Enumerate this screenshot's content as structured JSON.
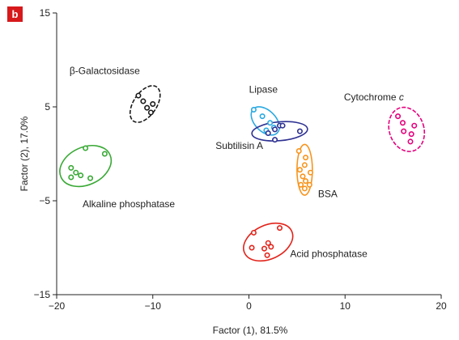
{
  "chart_data": {
    "type": "scatter",
    "panel_label": "b",
    "xlabel": "Factor (1), 81.5%",
    "ylabel": "Factor (2), 17.0%",
    "xlim": [
      -20,
      20
    ],
    "ylim": [
      -15,
      15
    ],
    "xticks": [
      -20,
      -10,
      0,
      10,
      20
    ],
    "yticks": [
      -15,
      -5,
      5,
      15
    ],
    "xtick_labels": [
      "−20",
      "−10",
      "0",
      "10",
      "20"
    ],
    "ytick_labels": [
      "−15",
      "−5",
      "5",
      "15"
    ],
    "grid": false,
    "series": [
      {
        "name": "β-Galactosidase",
        "color": "#1a1a1a",
        "ellipse_style": "dashed",
        "label_text": "β-Galactosidase",
        "label_at": [
          -15.0,
          8.5
        ],
        "points": [
          [
            -11.5,
            6.2
          ],
          [
            -11.0,
            5.6
          ],
          [
            -10.6,
            4.9
          ],
          [
            -10.0,
            5.3
          ],
          [
            -10.2,
            4.4
          ]
        ]
      },
      {
        "name": "Lipase",
        "color": "#29a9e1",
        "ellipse_style": "solid",
        "label_text": "Lipase",
        "label_at": [
          1.5,
          6.5
        ],
        "points": [
          [
            0.5,
            4.7
          ],
          [
            1.4,
            4.0
          ],
          [
            2.2,
            3.3
          ],
          [
            1.8,
            2.5
          ],
          [
            2.6,
            2.8
          ]
        ]
      },
      {
        "name": "Subtilisin A",
        "color": "#2e3192",
        "ellipse_style": "solid",
        "label_text": "Subtilisin A",
        "label_at": [
          -1.0,
          0.5
        ],
        "points": [
          [
            2.0,
            2.2
          ],
          [
            2.7,
            2.6
          ],
          [
            3.2,
            3.0
          ],
          [
            3.5,
            3.0
          ],
          [
            2.7,
            1.5
          ],
          [
            5.3,
            2.4
          ]
        ]
      },
      {
        "name": "Cytochrome c",
        "color": "#e6007e",
        "ellipse_style": "dashed",
        "label_text": "Cytochrome ",
        "label_italic": "c",
        "label_at": [
          13.0,
          5.7
        ],
        "points": [
          [
            15.5,
            4.0
          ],
          [
            16.0,
            3.3
          ],
          [
            17.2,
            3.0
          ],
          [
            16.1,
            2.4
          ],
          [
            16.9,
            2.1
          ],
          [
            16.8,
            1.3
          ]
        ]
      },
      {
        "name": "Alkaline phosphatase",
        "color": "#39a935",
        "ellipse_style": "solid",
        "label_text": "Alkaline phosphatase",
        "label_at": [
          -12.5,
          -5.7
        ],
        "points": [
          [
            -17.0,
            0.6
          ],
          [
            -15.0,
            0.0
          ],
          [
            -18.5,
            -1.5
          ],
          [
            -18.0,
            -2.0
          ],
          [
            -17.5,
            -2.3
          ],
          [
            -18.5,
            -2.5
          ],
          [
            -16.5,
            -2.6
          ]
        ]
      },
      {
        "name": "BSA",
        "color": "#f7941d",
        "ellipse_style": "solid",
        "label_text": "BSA",
        "label_at": [
          8.2,
          -4.6
        ],
        "points": [
          [
            5.2,
            0.3
          ],
          [
            5.9,
            -0.4
          ],
          [
            5.8,
            -1.2
          ],
          [
            5.3,
            -1.7
          ],
          [
            6.4,
            -2.0
          ],
          [
            5.6,
            -2.4
          ],
          [
            5.9,
            -2.9
          ],
          [
            5.4,
            -3.3
          ],
          [
            6.3,
            -3.3
          ],
          [
            5.8,
            -3.7
          ]
        ]
      },
      {
        "name": "Acid phosphatase",
        "color": "#e2231a",
        "ellipse_style": "solid",
        "label_text": "Acid phosphatase",
        "label_at": [
          8.3,
          -11.0
        ],
        "points": [
          [
            0.5,
            -8.4
          ],
          [
            3.2,
            -7.9
          ],
          [
            2.0,
            -9.5
          ],
          [
            2.3,
            -9.9
          ],
          [
            0.3,
            -10.0
          ],
          [
            1.6,
            -10.1
          ],
          [
            1.9,
            -10.8
          ]
        ]
      }
    ],
    "ellipses": [
      {
        "series": "β-Galactosidase",
        "cx": -10.8,
        "cy": 5.3,
        "rx": 1.2,
        "ry": 2.2,
        "angle": 34
      },
      {
        "series": "Lipase",
        "cx": 1.7,
        "cy": 3.5,
        "rx": 1.1,
        "ry": 1.8,
        "angle": -45
      },
      {
        "series": "Subtilisin A",
        "cx": 3.2,
        "cy": 2.4,
        "rx": 2.9,
        "ry": 1.0,
        "angle": -5
      },
      {
        "series": "Cytochrome c",
        "cx": 16.4,
        "cy": 2.6,
        "rx": 1.8,
        "ry": 2.4,
        "angle": -18
      },
      {
        "series": "Alkaline phosphatase",
        "cx": -17.0,
        "cy": -1.3,
        "rx": 2.8,
        "ry": 2.0,
        "angle": -25
      },
      {
        "series": "BSA",
        "cx": 5.8,
        "cy": -1.7,
        "rx": 0.8,
        "ry": 2.7,
        "angle": 0
      },
      {
        "series": "Acid phosphatase",
        "cx": 2.0,
        "cy": -9.4,
        "rx": 2.7,
        "ry": 1.8,
        "angle": -25
      }
    ]
  }
}
